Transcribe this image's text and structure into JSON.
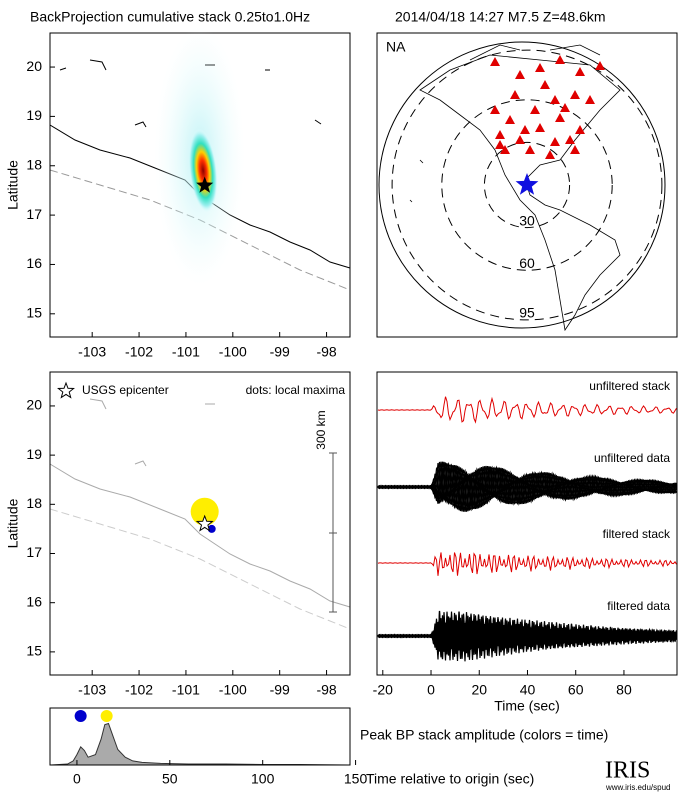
{
  "title": "BackProjection cumulative stack 0.25to1.0Hz",
  "event": "2014/04/18 14:27  M7.5  Z=48.6km",
  "chart_data": [
    {
      "type": "map",
      "ylabel": "Latitude",
      "xlim": [
        -103.9,
        -97.5
      ],
      "ylim": [
        14.53,
        20.69
      ],
      "xticks": [
        -103,
        -102,
        -101,
        -100,
        -99,
        -98
      ],
      "yticks": [
        15,
        16,
        17,
        18,
        19,
        20
      ],
      "epicenter": {
        "x": -100.6,
        "y": 17.6
      }
    },
    {
      "type": "polar-map",
      "region": "NA",
      "rings": [
        30,
        60,
        95
      ]
    },
    {
      "type": "maxima-map",
      "ylabel": "Latitude",
      "xlim": [
        -103.9,
        -97.5
      ],
      "ylim": [
        14.53,
        20.69
      ],
      "xticks": [
        -103,
        -102,
        -101,
        -100,
        -99,
        -98
      ],
      "yticks": [
        15,
        16,
        17,
        18,
        19,
        20
      ],
      "legend": "USGS epicenter",
      "note": "dots: local maxima",
      "scale_label": "300 km",
      "epicenter": {
        "x": -100.6,
        "y": 17.6
      },
      "maxima": [
        {
          "x": -100.6,
          "y": 17.85,
          "color": "#ffee00"
        },
        {
          "x": -100.45,
          "y": 17.5,
          "color": "#0000cc"
        }
      ]
    },
    {
      "type": "waveform",
      "xlabel": "Time (sec)",
      "xlim": [
        -22.4,
        102
      ],
      "xticks": [
        -20,
        0,
        20,
        40,
        60,
        80
      ],
      "traces": [
        "unfiltered stack",
        "unfiltered data",
        "filtered stack",
        "filtered data"
      ]
    },
    {
      "type": "area",
      "label": "Peak BP stack amplitude (colors = time)",
      "xlabel": "Time relative to origin (sec)",
      "xlim": [
        -14.5,
        147
      ],
      "ylim": [
        0,
        1.1
      ],
      "xticks": [
        0,
        50,
        100,
        150
      ],
      "color": "#aaaaaa",
      "x": [
        -14,
        -5,
        -2,
        0,
        2,
        4,
        6,
        10,
        13,
        15,
        17,
        19,
        22,
        26,
        30,
        35,
        45,
        60,
        80,
        100,
        120,
        146
      ],
      "values": [
        0,
        0.02,
        0.08,
        0.2,
        0.35,
        0.28,
        0.15,
        0.2,
        0.5,
        0.78,
        0.8,
        0.6,
        0.3,
        0.15,
        0.08,
        0.05,
        0.03,
        0.02,
        0.02,
        0.01,
        0.01,
        0
      ],
      "maxima": [
        {
          "x": 2,
          "color": "#0000cc"
        },
        {
          "x": 16,
          "color": "#ffee00"
        }
      ]
    }
  ],
  "logo": {
    "name": "IRIS",
    "url": "www.iris.edu/spud"
  }
}
